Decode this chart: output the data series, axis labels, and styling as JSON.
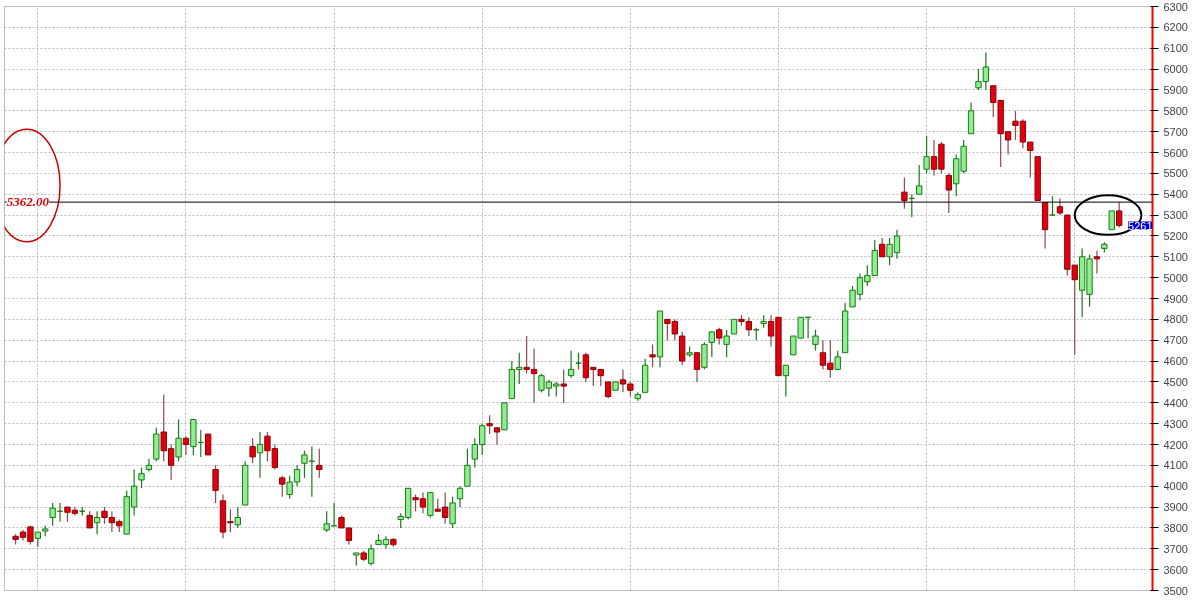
{
  "chart_data": {
    "type": "candlestick",
    "categories": [
      null,
      null,
      null,
      null,
      null,
      null,
      null,
      null,
      null,
      null,
      null,
      null,
      null,
      null,
      null,
      null,
      null,
      null,
      null,
      null,
      null,
      null,
      null,
      null,
      null,
      null,
      null,
      null,
      null,
      null,
      null,
      null,
      null,
      null,
      null,
      null,
      null,
      null,
      null,
      null,
      null,
      null,
      null,
      null,
      null,
      null,
      null,
      null,
      null,
      null,
      null,
      null,
      null,
      null,
      null,
      null,
      null,
      null,
      null,
      null,
      null,
      null,
      null,
      null,
      null,
      null,
      null,
      null,
      null,
      null,
      null,
      null,
      null,
      null,
      null,
      null,
      null,
      null,
      null,
      null,
      null,
      null,
      null,
      null,
      null,
      null,
      null,
      null,
      null,
      null,
      null,
      null,
      null,
      null,
      null,
      null,
      null,
      null,
      null,
      null,
      null,
      null,
      null,
      null,
      null,
      null,
      null,
      null,
      null,
      null,
      null,
      null,
      null,
      null,
      null,
      null,
      null,
      null,
      null,
      null,
      null,
      null,
      null,
      null,
      null,
      null,
      null,
      null,
      null,
      null,
      null,
      null,
      null,
      null,
      null,
      null,
      null,
      null,
      null,
      null,
      null,
      null,
      null,
      null,
      null,
      null,
      null,
      null,
      null,
      null
    ],
    "ohlc": [
      [
        3760,
        3770,
        3720,
        3745
      ],
      [
        3780,
        3790,
        3740,
        3755
      ],
      [
        3805,
        3810,
        3720,
        3735
      ],
      [
        3750,
        3780,
        3710,
        3780
      ],
      [
        3785,
        3810,
        3760,
        3795
      ],
      [
        3850,
        3920,
        3810,
        3895
      ],
      [
        3880,
        3920,
        3830,
        3880
      ],
      [
        3900,
        3900,
        3830,
        3875
      ],
      [
        3885,
        3900,
        3860,
        3870
      ],
      [
        3880,
        3900,
        3860,
        3880
      ],
      [
        3860,
        3880,
        3800,
        3800
      ],
      [
        3825,
        3880,
        3770,
        3850
      ],
      [
        3880,
        3900,
        3820,
        3850
      ],
      [
        3850,
        3880,
        3780,
        3825
      ],
      [
        3830,
        3840,
        3780,
        3810
      ],
      [
        3770,
        3980,
        3770,
        3950
      ],
      [
        3900,
        4080,
        3860,
        4000
      ],
      [
        4030,
        4090,
        3990,
        4060
      ],
      [
        4080,
        4130,
        4070,
        4100
      ],
      [
        4130,
        4280,
        4120,
        4250
      ],
      [
        4260,
        4440,
        4120,
        4170
      ],
      [
        4180,
        4200,
        4030,
        4100
      ],
      [
        4140,
        4320,
        4120,
        4230
      ],
      [
        4230,
        4240,
        4150,
        4200
      ],
      [
        4190,
        4320,
        4150,
        4320
      ],
      [
        4210,
        4270,
        4140,
        4210
      ],
      [
        4250,
        4250,
        4150,
        4150
      ],
      [
        4080,
        4100,
        3920,
        3980
      ],
      [
        3930,
        3960,
        3750,
        3780
      ],
      [
        3830,
        3890,
        3780,
        3825
      ],
      [
        3815,
        3900,
        3800,
        3850
      ],
      [
        3910,
        4120,
        3910,
        4100
      ],
      [
        4190,
        4230,
        4110,
        4140
      ],
      [
        4160,
        4260,
        4040,
        4200
      ],
      [
        4240,
        4260,
        4120,
        4170
      ],
      [
        4180,
        4200,
        4080,
        4090
      ],
      [
        4040,
        4050,
        3950,
        4010
      ],
      [
        3960,
        4050,
        3940,
        4020
      ],
      [
        4020,
        4100,
        4000,
        4080
      ],
      [
        4110,
        4170,
        4040,
        4150
      ],
      [
        4120,
        4190,
        3950,
        4120
      ],
      [
        4100,
        4180,
        4040,
        4080
      ],
      [
        3790,
        3880,
        3780,
        3820
      ],
      [
        3810,
        3920,
        3810,
        3810
      ],
      [
        3850,
        3860,
        3800,
        3800
      ],
      [
        3800,
        3800,
        3720,
        3740
      ],
      [
        3670,
        3680,
        3620,
        3680
      ],
      [
        3680,
        3690,
        3640,
        3650
      ],
      [
        3630,
        3720,
        3620,
        3700
      ],
      [
        3720,
        3770,
        3720,
        3740
      ],
      [
        3720,
        3760,
        3700,
        3745
      ],
      [
        3745,
        3750,
        3710,
        3720
      ],
      [
        3840,
        3870,
        3800,
        3855
      ],
      [
        3850,
        3990,
        3840,
        3990
      ],
      [
        3945,
        3960,
        3880,
        3935
      ],
      [
        3940,
        3970,
        3870,
        3900
      ],
      [
        3860,
        3970,
        3850,
        3970
      ],
      [
        3890,
        3940,
        3880,
        3880
      ],
      [
        3900,
        3970,
        3820,
        3850
      ],
      [
        3820,
        3950,
        3800,
        3920
      ],
      [
        3940,
        4000,
        3900,
        3990
      ],
      [
        4000,
        4180,
        4000,
        4100
      ],
      [
        4130,
        4230,
        4090,
        4200
      ],
      [
        4200,
        4300,
        4150,
        4290
      ],
      [
        4300,
        4340,
        4250,
        4290
      ],
      [
        4280,
        4280,
        4200,
        4260
      ],
      [
        4270,
        4400,
        4270,
        4400
      ],
      [
        4420,
        4600,
        4420,
        4560
      ],
      [
        4560,
        4640,
        4490,
        4570
      ],
      [
        4570,
        4720,
        4540,
        4560
      ],
      [
        4560,
        4660,
        4400,
        4540
      ],
      [
        4460,
        4540,
        4450,
        4530
      ],
      [
        4470,
        4510,
        4430,
        4500
      ],
      [
        4480,
        4500,
        4430,
        4490
      ],
      [
        4490,
        4560,
        4400,
        4480
      ],
      [
        4530,
        4650,
        4520,
        4560
      ],
      [
        4590,
        4640,
        4560,
        4590
      ],
      [
        4630,
        4640,
        4500,
        4520
      ],
      [
        4570,
        4570,
        4480,
        4560
      ],
      [
        4560,
        4560,
        4480,
        4530
      ],
      [
        4500,
        4500,
        4420,
        4430
      ],
      [
        4460,
        4500,
        4460,
        4500
      ],
      [
        4510,
        4560,
        4450,
        4490
      ],
      [
        4490,
        4500,
        4430,
        4460
      ],
      [
        4420,
        4450,
        4410,
        4440
      ],
      [
        4450,
        4610,
        4450,
        4580
      ],
      [
        4630,
        4680,
        4570,
        4620
      ],
      [
        4620,
        4840,
        4570,
        4840
      ],
      [
        4800,
        4800,
        4700,
        4780
      ],
      [
        4790,
        4800,
        4700,
        4730
      ],
      [
        4720,
        4740,
        4580,
        4600
      ],
      [
        4630,
        4670,
        4620,
        4640
      ],
      [
        4640,
        4640,
        4500,
        4560
      ],
      [
        4570,
        4690,
        4560,
        4680
      ],
      [
        4690,
        4740,
        4620,
        4740
      ],
      [
        4750,
        4760,
        4680,
        4710
      ],
      [
        4680,
        4750,
        4620,
        4720
      ],
      [
        4730,
        4800,
        4730,
        4800
      ],
      [
        4800,
        4820,
        4770,
        4790
      ],
      [
        4790,
        4810,
        4720,
        4750
      ],
      [
        4750,
        4760,
        4700,
        4750
      ],
      [
        4780,
        4820,
        4760,
        4790
      ],
      [
        4790,
        4820,
        4670,
        4720
      ],
      [
        4810,
        4810,
        4530,
        4530
      ],
      [
        4530,
        4580,
        4430,
        4580
      ],
      [
        4630,
        4720,
        4630,
        4720
      ],
      [
        4710,
        4810,
        4710,
        4810
      ],
      [
        4810,
        4810,
        4710,
        4810
      ],
      [
        4680,
        4750,
        4650,
        4720
      ],
      [
        4640,
        4700,
        4560,
        4580
      ],
      [
        4590,
        4700,
        4520,
        4560
      ],
      [
        4560,
        4650,
        4560,
        4620
      ],
      [
        4640,
        4880,
        4640,
        4840
      ],
      [
        4860,
        4960,
        4860,
        4940
      ],
      [
        4920,
        5020,
        4890,
        5000
      ],
      [
        4980,
        5060,
        4960,
        5010
      ],
      [
        5010,
        5180,
        5010,
        5130
      ],
      [
        5160,
        5190,
        5100,
        5100
      ],
      [
        5100,
        5190,
        5060,
        5160
      ],
      [
        5120,
        5230,
        5090,
        5200
      ],
      [
        5410,
        5480,
        5330,
        5370
      ],
      [
        5380,
        5400,
        5290,
        5380
      ],
      [
        5400,
        5540,
        5400,
        5440
      ],
      [
        5520,
        5680,
        5500,
        5580
      ],
      [
        5580,
        5660,
        5490,
        5520
      ],
      [
        5640,
        5650,
        5500,
        5520
      ],
      [
        5490,
        5500,
        5310,
        5420
      ],
      [
        5450,
        5590,
        5390,
        5570
      ],
      [
        5510,
        5660,
        5500,
        5630
      ],
      [
        5690,
        5840,
        5690,
        5800
      ],
      [
        5910,
        6000,
        5900,
        5940
      ],
      [
        5940,
        6080,
        5900,
        6010
      ],
      [
        5920,
        5920,
        5770,
        5840
      ],
      [
        5850,
        5850,
        5530,
        5690
      ],
      [
        5700,
        5700,
        5590,
        5660
      ],
      [
        5750,
        5800,
        5660,
        5730
      ],
      [
        5750,
        5760,
        5620,
        5650
      ],
      [
        5650,
        5650,
        5480,
        5610
      ],
      [
        5580,
        5580,
        5370,
        5370
      ],
      [
        5360,
        5360,
        5140,
        5230
      ],
      [
        5300,
        5390,
        5300,
        5300
      ],
      [
        5340,
        5380,
        5300,
        5310
      ],
      [
        5300,
        5300,
        5010,
        5040
      ],
      [
        5060,
        5060,
        4630,
        4990
      ],
      [
        4940,
        5140,
        4810,
        5100
      ],
      [
        4920,
        5110,
        4860,
        5090
      ],
      [
        5100,
        5130,
        5020,
        5090
      ],
      [
        5140,
        5170,
        5120,
        5160
      ],
      [
        5230,
        5320,
        5230,
        5320
      ],
      [
        5320,
        5360,
        5240,
        5250
      ]
    ],
    "ylim": [
      3500,
      6300
    ],
    "yticks": [
      3500,
      3600,
      3700,
      3800,
      3900,
      4000,
      4100,
      4200,
      4300,
      4400,
      4500,
      4600,
      4700,
      4800,
      4900,
      5000,
      5100,
      5200,
      5300,
      5400,
      5500,
      5600,
      5700,
      5800,
      5900,
      6000,
      6100,
      6200,
      6300
    ],
    "grid": true,
    "ref_lines": [
      {
        "axis": "y",
        "value": 5362,
        "label": "5362.00",
        "color": "#000000"
      }
    ],
    "annotations": [
      "5261"
    ]
  }
}
